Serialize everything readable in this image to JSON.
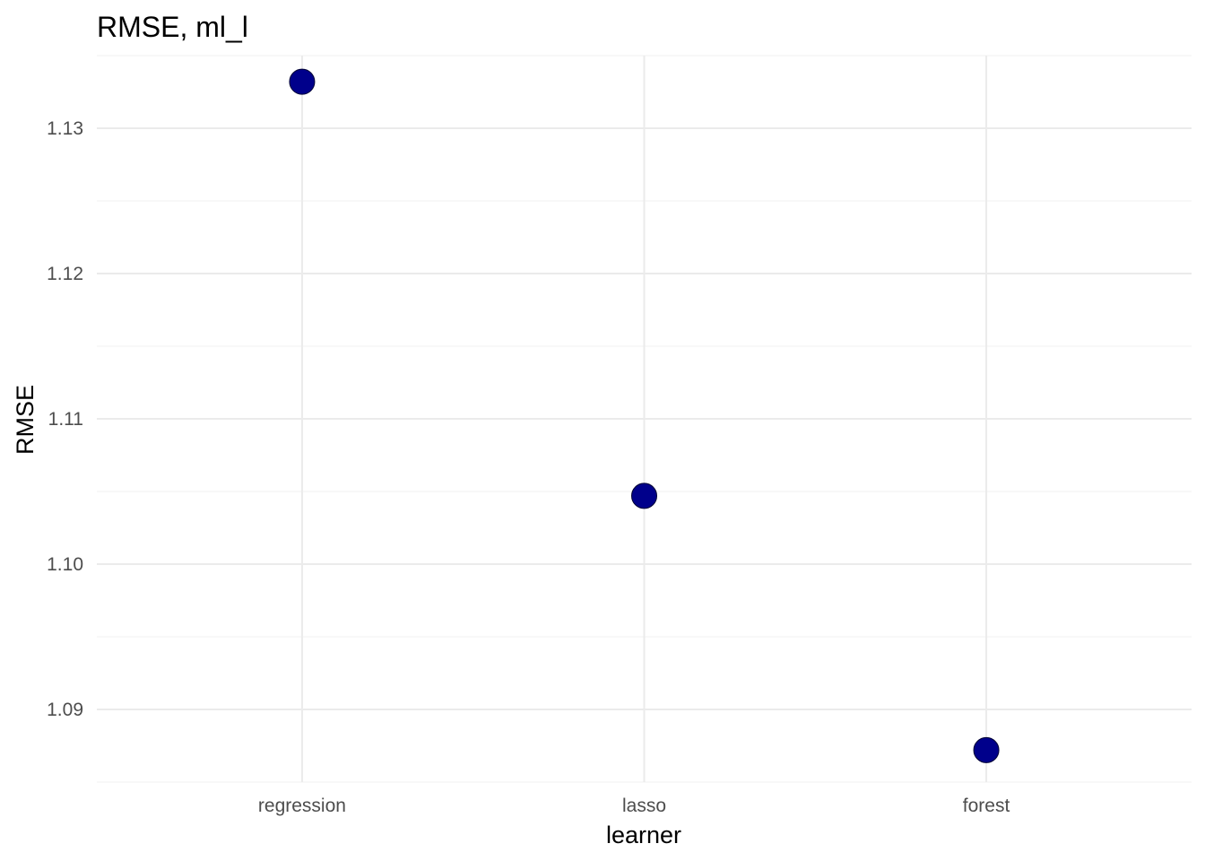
{
  "chart_data": {
    "type": "scatter",
    "title": "RMSE, ml_l",
    "xlabel": "learner",
    "ylabel": "RMSE",
    "categories": [
      "regression",
      "lasso",
      "forest"
    ],
    "values": [
      1.1332,
      1.1047,
      1.0872
    ],
    "yticks": [
      "1.09",
      "1.10",
      "1.11",
      "1.12",
      "1.13"
    ],
    "ytick_values": [
      1.09,
      1.1,
      1.11,
      1.12,
      1.13
    ],
    "ylim": [
      1.085,
      1.135
    ],
    "grid": true,
    "legend": "none",
    "point_color": "#00008B"
  }
}
